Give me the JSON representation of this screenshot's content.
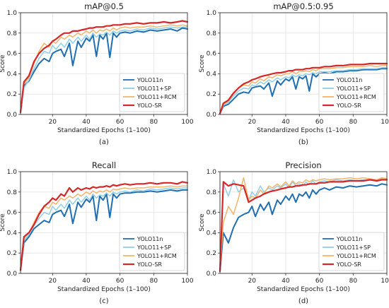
{
  "colors": {
    "YOLO11n": "#1f6fb2",
    "YOLO11+SP": "#8fd0e8",
    "YOLO11+RCM": "#f5b46a",
    "YOLO-SR": "#d62728"
  },
  "chart_data": [
    {
      "type": "line",
      "title": "mAP@0.5",
      "panel_label": "(a)",
      "xlabel": "Standardized Epochs (1–100)",
      "ylabel": "Score",
      "xlim": [
        1,
        100
      ],
      "ylim": [
        0,
        1.0
      ],
      "xticks": [
        "20",
        "40",
        "60",
        "80",
        "100"
      ],
      "yticks": [
        "0.0",
        "0.2",
        "0.4",
        "0.6",
        "0.8",
        "1.0"
      ],
      "grid": true,
      "legend_position": "lower-right",
      "x": [
        1,
        3,
        6,
        9,
        12,
        15,
        18,
        20,
        22,
        25,
        27,
        30,
        32,
        35,
        37,
        40,
        42,
        44,
        46,
        48,
        50,
        52,
        54,
        56,
        58,
        60,
        63,
        66,
        70,
        74,
        78,
        82,
        86,
        90,
        94,
        97,
        100
      ],
      "series": [
        {
          "name": "YOLO11n",
          "values": [
            0.02,
            0.28,
            0.33,
            0.42,
            0.5,
            0.55,
            0.52,
            0.6,
            0.62,
            0.64,
            0.57,
            0.7,
            0.48,
            0.72,
            0.66,
            0.75,
            0.72,
            0.78,
            0.57,
            0.78,
            0.74,
            0.8,
            0.56,
            0.8,
            0.76,
            0.8,
            0.81,
            0.8,
            0.82,
            0.81,
            0.83,
            0.82,
            0.83,
            0.84,
            0.82,
            0.85,
            0.84
          ]
        },
        {
          "name": "YOLO11+SP",
          "values": [
            0.02,
            0.26,
            0.34,
            0.45,
            0.55,
            0.62,
            0.6,
            0.68,
            0.64,
            0.7,
            0.66,
            0.74,
            0.7,
            0.76,
            0.72,
            0.78,
            0.74,
            0.8,
            0.76,
            0.79,
            0.78,
            0.81,
            0.78,
            0.82,
            0.8,
            0.82,
            0.83,
            0.82,
            0.84,
            0.83,
            0.85,
            0.84,
            0.85,
            0.86,
            0.85,
            0.86,
            0.86
          ]
        },
        {
          "name": "YOLO11+RCM",
          "values": [
            0.02,
            0.3,
            0.36,
            0.5,
            0.62,
            0.7,
            0.66,
            0.72,
            0.7,
            0.76,
            0.74,
            0.78,
            0.76,
            0.8,
            0.78,
            0.82,
            0.8,
            0.83,
            0.8,
            0.83,
            0.82,
            0.84,
            0.82,
            0.85,
            0.83,
            0.85,
            0.86,
            0.85,
            0.86,
            0.86,
            0.87,
            0.86,
            0.87,
            0.88,
            0.87,
            0.88,
            0.87
          ]
        },
        {
          "name": "YOLO-SR",
          "values": [
            0.02,
            0.32,
            0.38,
            0.52,
            0.6,
            0.65,
            0.68,
            0.72,
            0.74,
            0.78,
            0.8,
            0.8,
            0.82,
            0.82,
            0.83,
            0.84,
            0.85,
            0.85,
            0.86,
            0.86,
            0.86,
            0.87,
            0.87,
            0.88,
            0.88,
            0.88,
            0.89,
            0.89,
            0.9,
            0.89,
            0.9,
            0.9,
            0.91,
            0.9,
            0.91,
            0.92,
            0.91
          ]
        }
      ]
    },
    {
      "type": "line",
      "title": "mAP@0.5:0.95",
      "panel_label": "(b)",
      "xlabel": "Standardized Epochs (1–100)",
      "ylabel": "Score",
      "xlim": [
        1,
        100
      ],
      "ylim": [
        0,
        1.0
      ],
      "xticks": [
        "20",
        "40",
        "60",
        "80",
        "100"
      ],
      "yticks": [
        "0.0",
        "0.2",
        "0.4",
        "0.6",
        "0.8",
        "1.0"
      ],
      "grid": true,
      "legend_position": "lower-right",
      "x": [
        1,
        3,
        6,
        9,
        12,
        15,
        18,
        20,
        22,
        25,
        27,
        30,
        32,
        35,
        37,
        40,
        42,
        44,
        46,
        48,
        50,
        52,
        54,
        56,
        58,
        60,
        63,
        66,
        70,
        74,
        78,
        82,
        86,
        90,
        94,
        97,
        100
      ],
      "series": [
        {
          "name": "YOLO11n",
          "values": [
            0.01,
            0.08,
            0.1,
            0.15,
            0.2,
            0.22,
            0.21,
            0.26,
            0.27,
            0.28,
            0.25,
            0.31,
            0.18,
            0.33,
            0.29,
            0.35,
            0.33,
            0.37,
            0.25,
            0.37,
            0.35,
            0.38,
            0.23,
            0.4,
            0.37,
            0.4,
            0.41,
            0.4,
            0.42,
            0.42,
            0.43,
            0.43,
            0.44,
            0.44,
            0.44,
            0.45,
            0.45
          ]
        },
        {
          "name": "YOLO11+SP",
          "values": [
            0.01,
            0.09,
            0.12,
            0.18,
            0.23,
            0.26,
            0.25,
            0.29,
            0.28,
            0.32,
            0.3,
            0.34,
            0.32,
            0.36,
            0.34,
            0.37,
            0.36,
            0.39,
            0.37,
            0.39,
            0.38,
            0.4,
            0.39,
            0.41,
            0.4,
            0.42,
            0.42,
            0.42,
            0.43,
            0.43,
            0.44,
            0.44,
            0.45,
            0.45,
            0.45,
            0.46,
            0.46
          ]
        },
        {
          "name": "YOLO11+RCM",
          "values": [
            0.01,
            0.1,
            0.13,
            0.2,
            0.26,
            0.29,
            0.28,
            0.32,
            0.31,
            0.35,
            0.33,
            0.37,
            0.36,
            0.39,
            0.38,
            0.4,
            0.4,
            0.42,
            0.4,
            0.42,
            0.42,
            0.43,
            0.42,
            0.44,
            0.43,
            0.45,
            0.45,
            0.45,
            0.46,
            0.46,
            0.47,
            0.47,
            0.47,
            0.48,
            0.47,
            0.48,
            0.48
          ]
        },
        {
          "name": "YOLO-SR",
          "values": [
            0.01,
            0.11,
            0.14,
            0.21,
            0.26,
            0.3,
            0.32,
            0.34,
            0.35,
            0.37,
            0.38,
            0.39,
            0.4,
            0.41,
            0.41,
            0.42,
            0.43,
            0.43,
            0.44,
            0.44,
            0.44,
            0.45,
            0.45,
            0.46,
            0.46,
            0.46,
            0.47,
            0.47,
            0.48,
            0.48,
            0.49,
            0.49,
            0.49,
            0.5,
            0.5,
            0.5,
            0.5
          ]
        }
      ]
    },
    {
      "type": "line",
      "title": "Recall",
      "panel_label": "(c)",
      "xlabel": "Standardized Epochs (1–100)",
      "ylabel": "Score",
      "xlim": [
        1,
        100
      ],
      "ylim": [
        0,
        1.0
      ],
      "xticks": [
        "20",
        "40",
        "60",
        "80",
        "100"
      ],
      "yticks": [
        "0.0",
        "0.2",
        "0.4",
        "0.6",
        "0.8",
        "1.0"
      ],
      "grid": true,
      "legend_position": "lower-right",
      "x": [
        1,
        3,
        6,
        9,
        12,
        15,
        18,
        20,
        22,
        25,
        27,
        30,
        32,
        35,
        37,
        40,
        42,
        44,
        46,
        48,
        50,
        52,
        54,
        56,
        58,
        60,
        63,
        66,
        70,
        74,
        78,
        82,
        86,
        90,
        94,
        97,
        100
      ],
      "series": [
        {
          "name": "YOLO11n",
          "values": [
            0.03,
            0.3,
            0.36,
            0.44,
            0.48,
            0.52,
            0.5,
            0.58,
            0.6,
            0.62,
            0.56,
            0.68,
            0.49,
            0.7,
            0.65,
            0.73,
            0.7,
            0.76,
            0.52,
            0.76,
            0.72,
            0.78,
            0.55,
            0.78,
            0.74,
            0.78,
            0.79,
            0.79,
            0.8,
            0.8,
            0.81,
            0.8,
            0.81,
            0.82,
            0.81,
            0.82,
            0.82
          ]
        },
        {
          "name": "YOLO11+SP",
          "values": [
            0.03,
            0.32,
            0.38,
            0.47,
            0.54,
            0.6,
            0.58,
            0.66,
            0.62,
            0.68,
            0.64,
            0.72,
            0.68,
            0.74,
            0.7,
            0.76,
            0.72,
            0.78,
            0.74,
            0.77,
            0.76,
            0.79,
            0.76,
            0.8,
            0.78,
            0.8,
            0.81,
            0.8,
            0.82,
            0.81,
            0.83,
            0.82,
            0.83,
            0.84,
            0.83,
            0.84,
            0.84
          ]
        },
        {
          "name": "YOLO11+RCM",
          "values": [
            0.03,
            0.34,
            0.4,
            0.5,
            0.6,
            0.66,
            0.64,
            0.7,
            0.68,
            0.74,
            0.72,
            0.76,
            0.74,
            0.78,
            0.76,
            0.8,
            0.78,
            0.81,
            0.79,
            0.81,
            0.8,
            0.82,
            0.8,
            0.83,
            0.82,
            0.83,
            0.84,
            0.83,
            0.84,
            0.84,
            0.85,
            0.85,
            0.85,
            0.86,
            0.85,
            0.86,
            0.86
          ]
        },
        {
          "name": "YOLO-SR",
          "values": [
            0.03,
            0.36,
            0.4,
            0.48,
            0.58,
            0.66,
            0.7,
            0.74,
            0.72,
            0.78,
            0.76,
            0.84,
            0.8,
            0.84,
            0.82,
            0.84,
            0.83,
            0.85,
            0.84,
            0.85,
            0.85,
            0.86,
            0.85,
            0.87,
            0.86,
            0.87,
            0.88,
            0.87,
            0.88,
            0.88,
            0.89,
            0.88,
            0.89,
            0.89,
            0.88,
            0.9,
            0.89
          ]
        }
      ]
    },
    {
      "type": "line",
      "title": "Precision",
      "panel_label": "(d)",
      "xlabel": "Standardized Epochs (1–100)",
      "ylabel": "Score",
      "xlim": [
        1,
        100
      ],
      "ylim": [
        0,
        1.0
      ],
      "xticks": [
        "20",
        "40",
        "60",
        "80",
        "100"
      ],
      "yticks": [
        "0.0",
        "0.2",
        "0.4",
        "0.6",
        "0.8",
        "1.0"
      ],
      "grid": true,
      "legend_position": "lower-right",
      "x": [
        1,
        3,
        6,
        9,
        12,
        15,
        18,
        20,
        22,
        25,
        27,
        30,
        32,
        35,
        37,
        40,
        42,
        44,
        46,
        48,
        50,
        52,
        54,
        56,
        58,
        60,
        63,
        66,
        70,
        74,
        78,
        82,
        86,
        90,
        94,
        97,
        100
      ],
      "series": [
        {
          "name": "YOLO11n",
          "values": [
            0.02,
            0.4,
            0.3,
            0.45,
            0.55,
            0.58,
            0.6,
            0.66,
            0.56,
            0.68,
            0.62,
            0.7,
            0.58,
            0.72,
            0.68,
            0.76,
            0.72,
            0.78,
            0.7,
            0.78,
            0.76,
            0.8,
            0.74,
            0.82,
            0.78,
            0.82,
            0.84,
            0.82,
            0.85,
            0.84,
            0.86,
            0.85,
            0.86,
            0.87,
            0.86,
            0.88,
            0.87
          ]
        },
        {
          "name": "YOLO11+SP",
          "values": [
            0.02,
            0.88,
            0.76,
            0.92,
            0.8,
            0.84,
            0.72,
            0.8,
            0.76,
            0.86,
            0.8,
            0.84,
            0.82,
            0.86,
            0.84,
            0.88,
            0.84,
            0.9,
            0.86,
            0.88,
            0.86,
            0.9,
            0.87,
            0.91,
            0.88,
            0.9,
            0.91,
            0.9,
            0.92,
            0.91,
            0.92,
            0.91,
            0.92,
            0.92,
            0.91,
            0.93,
            0.92
          ]
        },
        {
          "name": "YOLO11+RCM",
          "values": [
            0.02,
            0.5,
            0.66,
            0.58,
            0.74,
            0.94,
            0.72,
            0.76,
            0.74,
            0.82,
            0.78,
            0.86,
            0.84,
            0.88,
            0.85,
            0.9,
            0.86,
            0.91,
            0.88,
            0.9,
            0.89,
            0.92,
            0.9,
            0.92,
            0.91,
            0.92,
            0.93,
            0.92,
            0.93,
            0.93,
            0.94,
            0.93,
            0.94,
            0.93,
            0.92,
            0.94,
            0.93
          ]
        },
        {
          "name": "YOLO-SR",
          "values": [
            0.02,
            0.9,
            0.86,
            0.88,
            0.87,
            0.86,
            0.7,
            0.72,
            0.74,
            0.76,
            0.78,
            0.8,
            0.81,
            0.82,
            0.83,
            0.84,
            0.85,
            0.85,
            0.86,
            0.86,
            0.87,
            0.87,
            0.88,
            0.88,
            0.88,
            0.89,
            0.89,
            0.9,
            0.9,
            0.9,
            0.91,
            0.91,
            0.91,
            0.92,
            0.91,
            0.92,
            0.92
          ]
        }
      ]
    }
  ]
}
